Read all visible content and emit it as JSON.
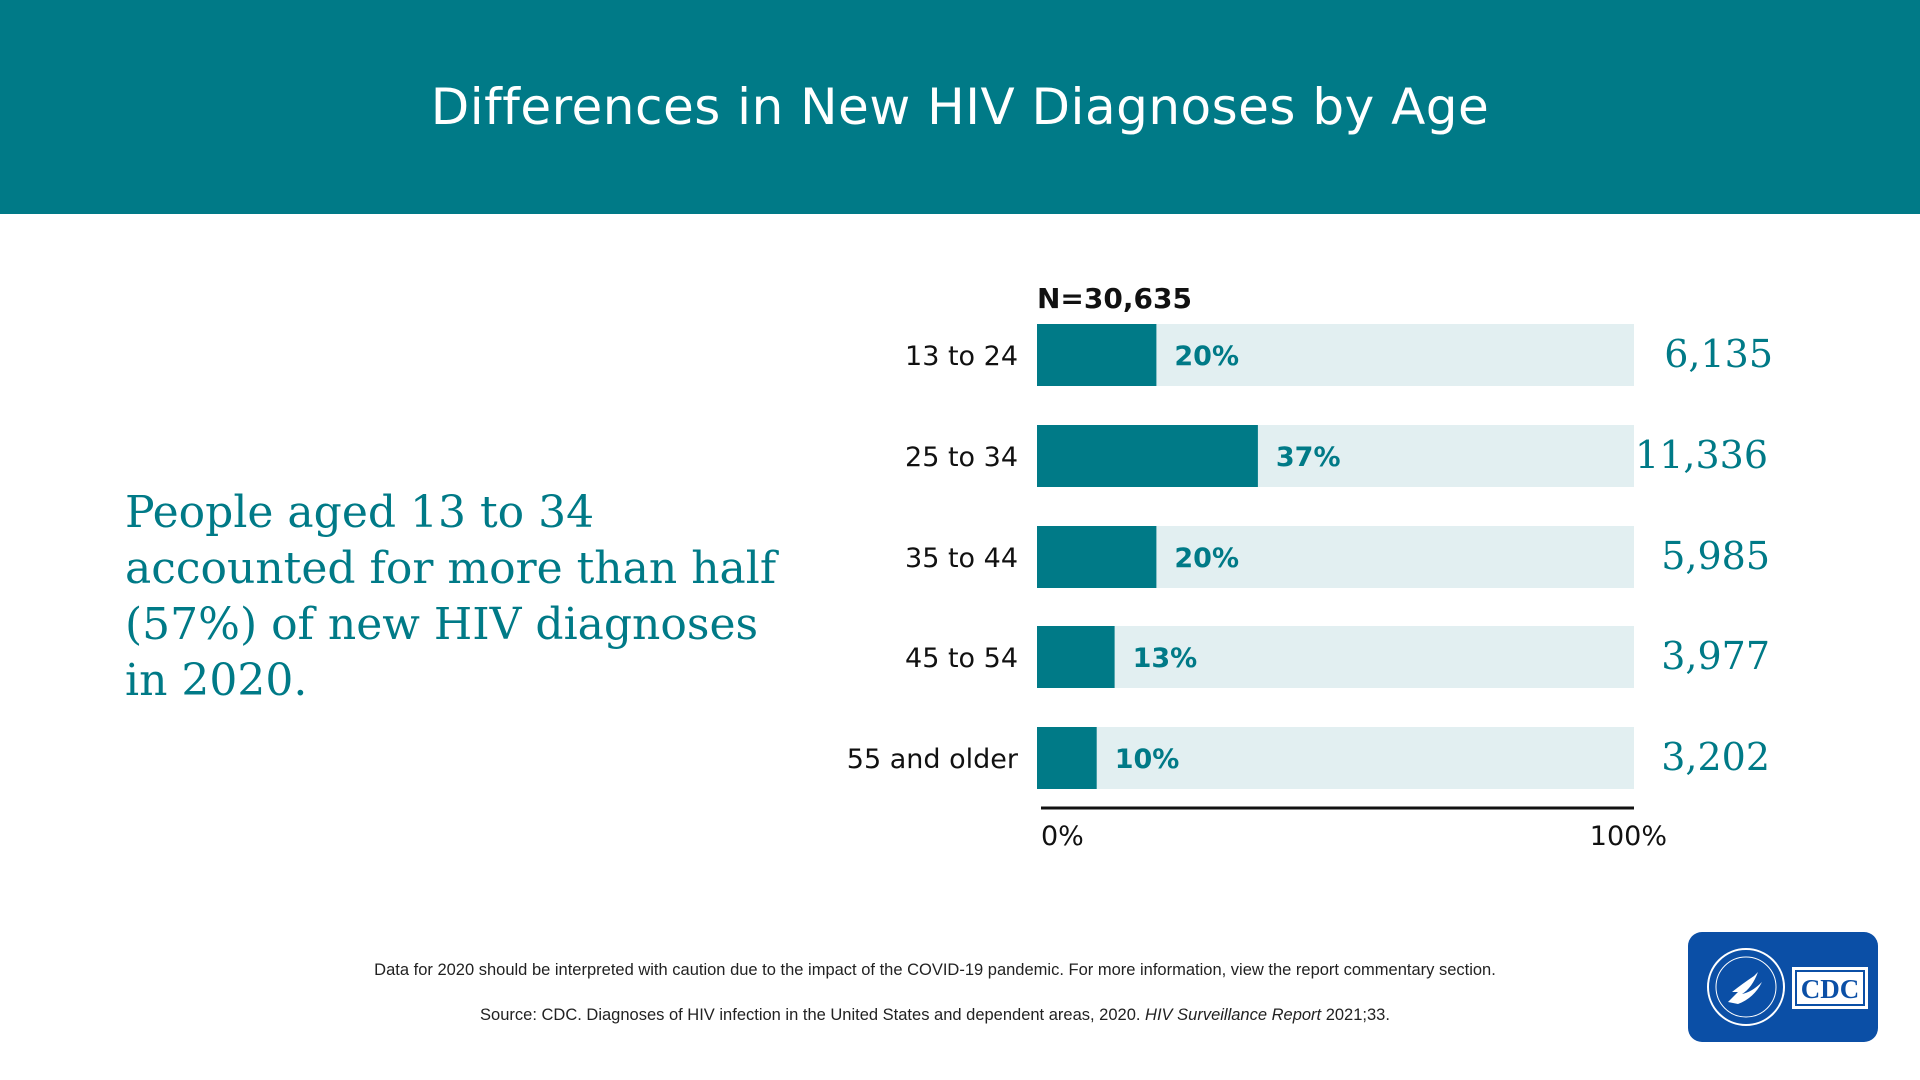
{
  "header": {
    "title": "Differences in New HIV Diagnoses by Age"
  },
  "callout": "People aged 13 to 34 accounted for more than half (57%) of new HIV diagnoses in 2020.",
  "colors": {
    "accent": "#007a87",
    "track": "#e2eff1",
    "header_bg": "#007a87",
    "logo_bg": "#0b4fa6"
  },
  "chart_data": {
    "type": "bar",
    "orientation": "horizontal",
    "stacked_to_100": true,
    "n_label": "N=30,635",
    "categories": [
      "13 to 24",
      "25 to 34",
      "35 to 44",
      "45 to 54",
      "55 and older"
    ],
    "values": [
      20,
      37,
      20,
      13,
      10
    ],
    "value_labels": [
      "20%",
      "37%",
      "20%",
      "13%",
      "10%"
    ],
    "counts": [
      "6,135",
      "11,336",
      "5,985",
      "3,977",
      "3,202"
    ],
    "xlim": [
      0,
      100
    ],
    "x_tick_labels": [
      "0%",
      "100%"
    ],
    "grid": false
  },
  "footnotes": {
    "line1": "Data for 2020 should be interpreted with caution due to the impact of the COVID-19 pandemic. For more information, view the report commentary section.",
    "line2_prefix": "Source: CDC. Diagnoses of HIV infection in the United States and dependent areas, 2020. ",
    "line2_italic": "HIV Surveillance Report",
    "line2_suffix": " 2021;33."
  },
  "logo": {
    "text": "CDC",
    "icon": "hhs-eagle-icon"
  }
}
